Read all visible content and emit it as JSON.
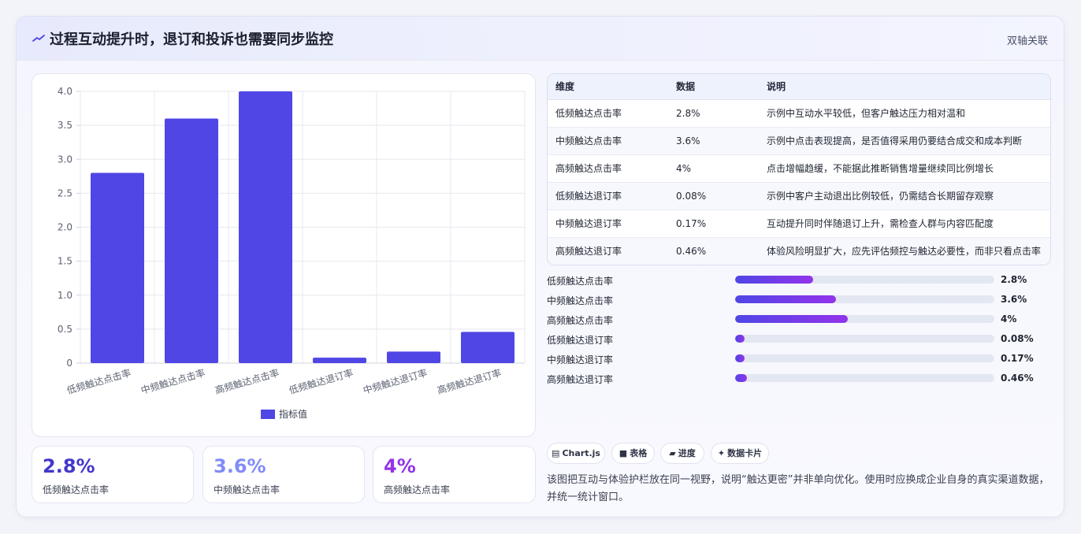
{
  "header": {
    "icon": "trend-line-icon",
    "title": "过程互动提升时，退订和投诉也需要同步监控",
    "badge": "双轴关联"
  },
  "chart_data": {
    "type": "bar",
    "categories": [
      "低频触达点击率",
      "中频触达点击率",
      "高频触达点击率",
      "低频触达退订率",
      "中频触达退订率",
      "高频触达退订率"
    ],
    "series": [
      {
        "name": "指标值",
        "values": [
          2.8,
          3.6,
          4,
          0.08,
          0.17,
          0.46
        ],
        "color": "#4f46e5"
      }
    ],
    "ylim": [
      0,
      4
    ],
    "yticks": [
      "0",
      "0.5",
      "1.0",
      "1.5",
      "2.0",
      "2.5",
      "3.0",
      "3.5",
      "4.0"
    ],
    "grid": true,
    "legend": "bottom"
  },
  "kpis": [
    {
      "value": "2.8%",
      "label": "低频触达点击率",
      "color": "#4338ca"
    },
    {
      "value": "3.6%",
      "label": "中频触达点击率",
      "color": "#818cf8"
    },
    {
      "value": "4%",
      "label": "高频触达点击率",
      "color": "#9333ea"
    }
  ],
  "table": {
    "headers": [
      "维度",
      "数据",
      "说明"
    ],
    "rows": [
      [
        "低频触达点击率",
        "2.8%",
        "示例中互动水平较低，但客户触达压力相对温和"
      ],
      [
        "中频触达点击率",
        "3.6%",
        "示例中点击表现提高，是否值得采用仍要结合成交和成本判断"
      ],
      [
        "高频触达点击率",
        "4%",
        "点击增幅趋缓，不能据此推断销售增量继续同比例增长"
      ],
      [
        "低频触达退订率",
        "0.08%",
        "示例中客户主动退出比例较低，仍需结合长期留存观察"
      ],
      [
        "中频触达退订率",
        "0.17%",
        "互动提升同时伴随退订上升，需检查人群与内容匹配度"
      ],
      [
        "高频触达退订率",
        "0.46%",
        "体验风险明显扩大，应先评估频控与触达必要性，而非只看点击率"
      ]
    ]
  },
  "progress": [
    {
      "label": "低频触达点击率",
      "value": "2.8%",
      "fraction": 0.3
    },
    {
      "label": "中频触达点击率",
      "value": "3.6%",
      "fraction": 0.39
    },
    {
      "label": "高频触达点击率",
      "value": "4%",
      "fraction": 0.435
    },
    {
      "label": "低频触达退订率",
      "value": "0.08%",
      "fraction": 0.035
    },
    {
      "label": "中频触达退订率",
      "value": "0.17%",
      "fraction": 0.035
    },
    {
      "label": "高频触达退订率",
      "value": "0.46%",
      "fraction": 0.045
    }
  ],
  "chips": [
    {
      "icon": "chart-icon",
      "glyph": "▤",
      "label": "Chart.js"
    },
    {
      "icon": "table-icon",
      "glyph": "■",
      "label": "表格"
    },
    {
      "icon": "progress-icon",
      "glyph": "▰",
      "label": "进度"
    },
    {
      "icon": "sparkle-icon",
      "glyph": "✦",
      "label": "数据卡片"
    }
  ],
  "note": "该图把互动与体验护栏放在同一视野，说明“触达更密”并非单向优化。使用时应换成企业自身的真实渠道数据，并统一统计窗口。"
}
